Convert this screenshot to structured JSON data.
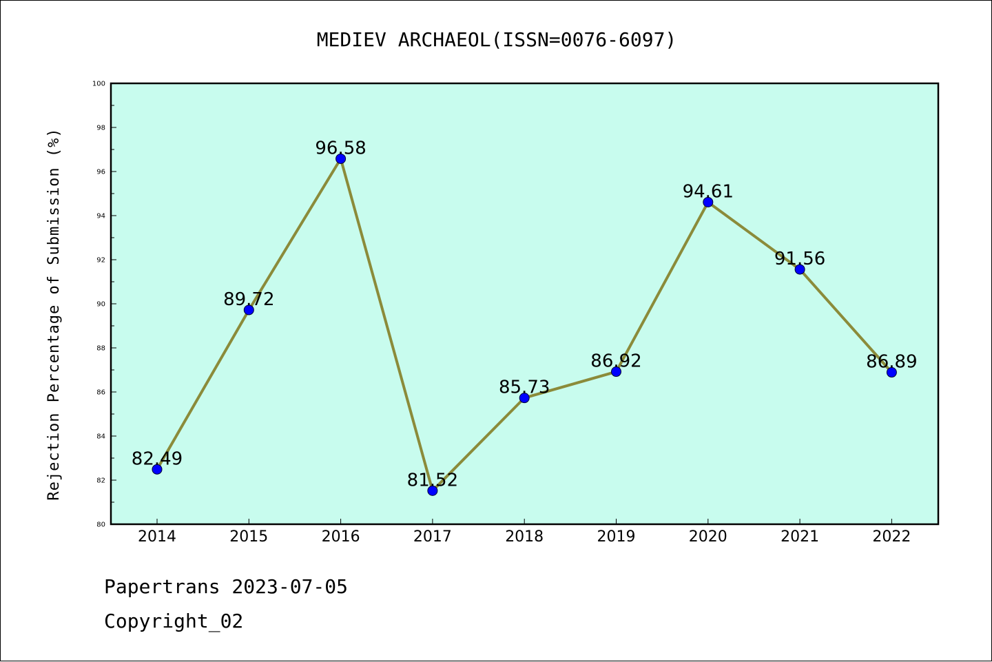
{
  "footer": {
    "line1": "Papertrans 2023-07-05",
    "line2": "Copyright_02"
  },
  "colors": {
    "plot_bg": "#c8fcee",
    "line": "#8b8b3a",
    "marker": "#0000ff"
  },
  "chart_data": {
    "type": "line",
    "title": "MEDIEV ARCHAEOL(ISSN=0076-6097)",
    "xlabel": "",
    "ylabel": "Rejection Percentage of Submission (%)",
    "categories": [
      "2014",
      "2015",
      "2016",
      "2017",
      "2018",
      "2019",
      "2020",
      "2021",
      "2022"
    ],
    "values": [
      82.49,
      89.72,
      96.58,
      81.52,
      85.73,
      86.92,
      94.61,
      91.56,
      86.89
    ],
    "data_labels": [
      "82.49",
      "89.72",
      "96.58",
      "81.52",
      "85.73",
      "86.92",
      "94.61",
      "91.56",
      "86.89"
    ],
    "ylim": [
      80,
      100
    ],
    "yticks": [
      "80",
      "82",
      "84",
      "86",
      "88",
      "90",
      "92",
      "94",
      "96",
      "98",
      "100"
    ],
    "grid": false,
    "legend": "none"
  }
}
